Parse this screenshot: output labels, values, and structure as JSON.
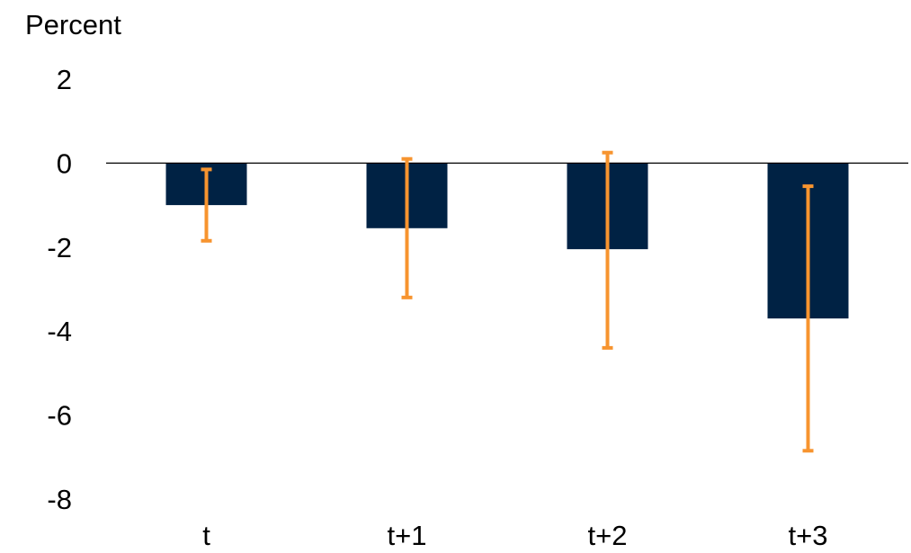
{
  "chart_data": {
    "type": "bar",
    "title": "",
    "unit_label": "Percent",
    "xlabel": "",
    "ylabel": "",
    "categories": [
      "t",
      "t+1",
      "t+2",
      "t+3"
    ],
    "values": [
      -1.0,
      -1.55,
      -2.05,
      -3.7
    ],
    "error_bars": [
      {
        "low": -1.85,
        "high": -0.15
      },
      {
        "low": -3.2,
        "high": 0.1
      },
      {
        "low": -4.4,
        "high": 0.25
      },
      {
        "low": -6.85,
        "high": -0.55
      }
    ],
    "ylim": [
      -8,
      2
    ],
    "y_ticks": [
      "2",
      "0",
      "-2",
      "-4",
      "-6",
      "-8"
    ],
    "y_tick_values": [
      2,
      0,
      -2,
      -4,
      -6,
      -8
    ],
    "grid": false,
    "legend": "none",
    "colors": {
      "bar": "#002244",
      "error_bar": "#F7942F",
      "axis": "#000000"
    }
  }
}
